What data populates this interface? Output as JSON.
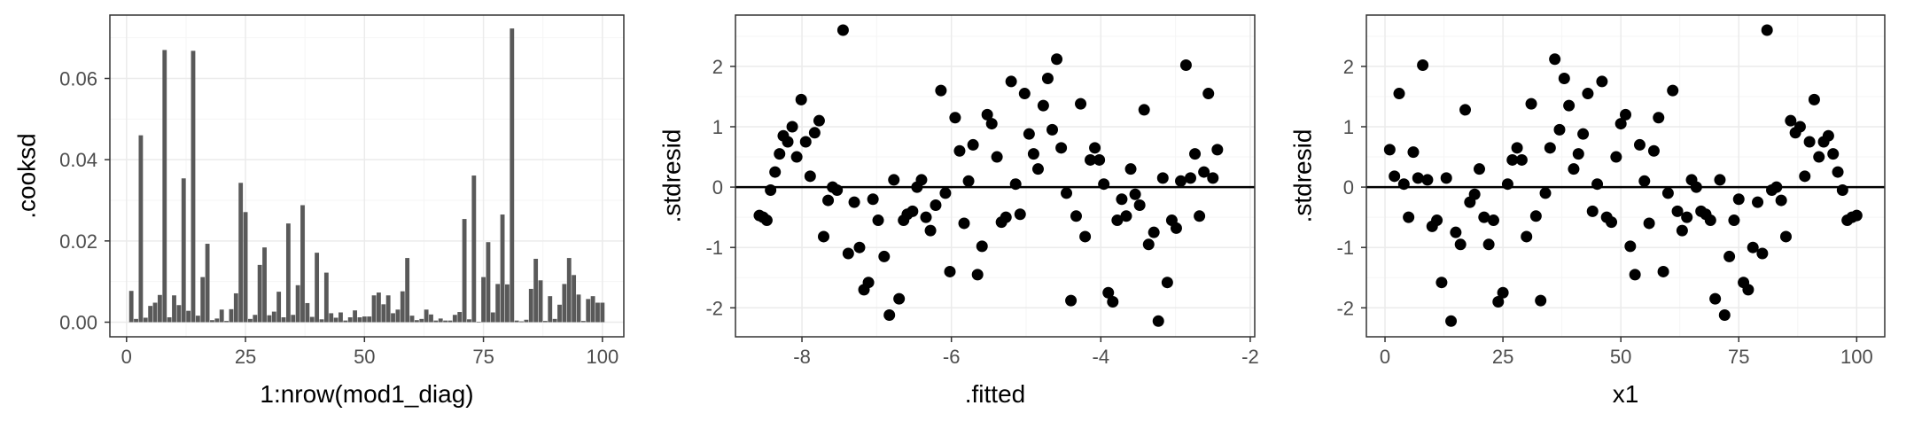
{
  "colors": {
    "panel_border": "#333333",
    "grid_major": "#ebebeb",
    "grid_minor": "#f5f5f5",
    "bar_fill": "#595959",
    "point": "#000000",
    "hline": "#000000",
    "tick_text": "#4d4d4d"
  },
  "chart_data": [
    {
      "type": "bar",
      "title": "",
      "xlabel": "1:nrow(mod1_diag)",
      "ylabel": ".cooksd",
      "xlim": [
        -3.5,
        104.5
      ],
      "ylim": [
        -0.0036,
        0.0756
      ],
      "xticks": [
        0,
        25,
        50,
        75,
        100
      ],
      "xtick_labels": [
        "0",
        "25",
        "50",
        "75",
        "100"
      ],
      "yticks": [
        0.0,
        0.02,
        0.04,
        0.06
      ],
      "ytick_labels": [
        "0.00",
        "0.02",
        "0.04",
        "0.06"
      ],
      "grid": true,
      "x": [
        1,
        2,
        3,
        4,
        5,
        6,
        7,
        8,
        9,
        10,
        11,
        12,
        13,
        14,
        15,
        16,
        17,
        18,
        19,
        20,
        21,
        22,
        23,
        24,
        25,
        26,
        27,
        28,
        29,
        30,
        31,
        32,
        33,
        34,
        35,
        36,
        37,
        38,
        39,
        40,
        41,
        42,
        43,
        44,
        45,
        46,
        47,
        48,
        49,
        50,
        51,
        52,
        53,
        54,
        55,
        56,
        57,
        58,
        59,
        60,
        61,
        62,
        63,
        64,
        65,
        66,
        67,
        68,
        69,
        70,
        71,
        72,
        73,
        74,
        75,
        76,
        77,
        78,
        79,
        80,
        81,
        82,
        83,
        84,
        85,
        86,
        87,
        88,
        89,
        90,
        91,
        92,
        93,
        94,
        95,
        96,
        97,
        98,
        99,
        100
      ],
      "values": [
        0.0077,
        0.0008,
        0.046,
        0.0011,
        0.004,
        0.0048,
        0.0067,
        0.067,
        0.0012,
        0.0066,
        0.0042,
        0.0354,
        0.0028,
        0.0668,
        0.0016,
        0.0111,
        0.0193,
        0.0005,
        0.0009,
        0.0031,
        0.0003,
        0.0032,
        0.0071,
        0.0343,
        0.0271,
        0.0008,
        0.0018,
        0.0141,
        0.0184,
        0.0017,
        0.0026,
        0.0075,
        0.0012,
        0.0243,
        0.0018,
        0.0091,
        0.0288,
        0.0047,
        0.0013,
        0.0171,
        0.0007,
        0.0122,
        0.0022,
        0.0011,
        0.0024,
        0.0004,
        0.0012,
        0.0029,
        0.0012,
        0.0014,
        0.0014,
        0.0066,
        0.0073,
        0.0044,
        0.0066,
        0.0022,
        0.0031,
        0.0076,
        0.0158,
        0.0016,
        0.0005,
        0.0008,
        0.0031,
        0.0019,
        0.0004,
        0.0009,
        0.0004,
        0.0004,
        0.0018,
        0.0025,
        0.0254,
        0.0007,
        0.0361,
        0.0001,
        0.0111,
        0.0197,
        0.0024,
        0.0094,
        0.0265,
        0.0093,
        0.0723,
        0.0004,
        0.0002,
        0.0006,
        0.0082,
        0.0156,
        0.0103,
        0.0003,
        0.0064,
        0.0008,
        0.0043,
        0.0094,
        0.0158,
        0.0116,
        0.0068,
        0.0003,
        0.0057,
        0.0064,
        0.0048,
        0.0048
      ]
    },
    {
      "type": "scatter",
      "title": "",
      "xlabel": ".fitted",
      "ylabel": ".stdresid",
      "xlim": [
        -8.89,
        -1.94
      ],
      "ylim": [
        -2.48,
        2.85
      ],
      "xticks": [
        -8,
        -6,
        -4,
        -2
      ],
      "xtick_labels": [
        "-8",
        "-6",
        "-4",
        "-2"
      ],
      "yticks": [
        -2,
        -1,
        0,
        1,
        2
      ],
      "ytick_labels": [
        "-2",
        "-1",
        "0",
        "1",
        "2"
      ],
      "hline": 0,
      "grid": true,
      "points": [
        [
          -8.57,
          -0.47
        ],
        [
          -8.52,
          -0.5
        ],
        [
          -8.47,
          -0.55
        ],
        [
          -8.42,
          -0.05
        ],
        [
          -8.36,
          0.25
        ],
        [
          -8.3,
          0.55
        ],
        [
          -8.25,
          0.85
        ],
        [
          -8.19,
          0.75
        ],
        [
          -8.13,
          1.0
        ],
        [
          -8.07,
          0.5
        ],
        [
          -8.01,
          1.45
        ],
        [
          -7.95,
          0.75
        ],
        [
          -7.89,
          0.18
        ],
        [
          -7.83,
          0.9
        ],
        [
          -7.77,
          1.1
        ],
        [
          -7.71,
          -0.82
        ],
        [
          -7.65,
          -0.22
        ],
        [
          -7.59,
          -0.0
        ],
        [
          -7.53,
          -0.05
        ],
        [
          -7.45,
          2.6
        ],
        [
          -7.38,
          -1.1
        ],
        [
          -7.3,
          -0.25
        ],
        [
          -7.23,
          -1.0
        ],
        [
          -7.17,
          -1.7
        ],
        [
          -7.11,
          -1.58
        ],
        [
          -7.05,
          -0.2
        ],
        [
          -6.98,
          -0.55
        ],
        [
          -6.9,
          -1.15
        ],
        [
          -6.83,
          -2.12
        ],
        [
          -6.77,
          0.12
        ],
        [
          -6.7,
          -1.85
        ],
        [
          -6.64,
          -0.55
        ],
        [
          -6.59,
          -0.45
        ],
        [
          -6.52,
          -0.4
        ],
        [
          -6.46,
          0.0
        ],
        [
          -6.4,
          0.12
        ],
        [
          -6.34,
          -0.5
        ],
        [
          -6.28,
          -0.72
        ],
        [
          -6.21,
          -0.3
        ],
        [
          -6.14,
          1.6
        ],
        [
          -6.08,
          -0.1
        ],
        [
          -6.02,
          -1.4
        ],
        [
          -5.95,
          1.15
        ],
        [
          -5.89,
          0.6
        ],
        [
          -5.83,
          -0.6
        ],
        [
          -5.77,
          0.1
        ],
        [
          -5.71,
          0.7
        ],
        [
          -5.65,
          -1.45
        ],
        [
          -5.59,
          -0.98
        ],
        [
          -5.52,
          1.2
        ],
        [
          -5.46,
          1.05
        ],
        [
          -5.39,
          0.5
        ],
        [
          -5.33,
          -0.58
        ],
        [
          -5.27,
          -0.5
        ],
        [
          -5.2,
          1.75
        ],
        [
          -5.14,
          0.05
        ],
        [
          -5.08,
          -0.45
        ],
        [
          -5.02,
          1.55
        ],
        [
          -4.96,
          0.88
        ],
        [
          -4.9,
          0.55
        ],
        [
          -4.84,
          0.3
        ],
        [
          -4.77,
          1.35
        ],
        [
          -4.71,
          1.8
        ],
        [
          -4.65,
          0.95
        ],
        [
          -4.59,
          2.12
        ],
        [
          -4.53,
          0.65
        ],
        [
          -4.46,
          -0.1
        ],
        [
          -4.4,
          -1.88
        ],
        [
          -4.33,
          -0.48
        ],
        [
          -4.27,
          1.38
        ],
        [
          -4.21,
          -0.82
        ],
        [
          -4.14,
          0.45
        ],
        [
          -4.08,
          0.65
        ],
        [
          -4.02,
          0.45
        ],
        [
          -3.96,
          0.05
        ],
        [
          -3.9,
          -1.75
        ],
        [
          -3.84,
          -1.9
        ],
        [
          -3.78,
          -0.55
        ],
        [
          -3.72,
          -0.2
        ],
        [
          -3.66,
          -0.48
        ],
        [
          -3.6,
          0.3
        ],
        [
          -3.54,
          -0.12
        ],
        [
          -3.48,
          -0.3
        ],
        [
          -3.42,
          1.28
        ],
        [
          -3.36,
          -0.95
        ],
        [
          -3.29,
          -0.75
        ],
        [
          -3.23,
          -2.22
        ],
        [
          -3.17,
          0.15
        ],
        [
          -3.11,
          -1.58
        ],
        [
          -3.05,
          -0.55
        ],
        [
          -2.99,
          -0.68
        ],
        [
          -2.93,
          0.1
        ],
        [
          -2.86,
          2.02
        ],
        [
          -2.8,
          0.15
        ],
        [
          -2.74,
          0.55
        ],
        [
          -2.68,
          -0.48
        ],
        [
          -2.62,
          0.25
        ],
        [
          -2.56,
          1.55
        ],
        [
          -2.5,
          0.15
        ],
        [
          -2.44,
          0.62
        ]
      ]
    },
    {
      "type": "scatter",
      "title": "",
      "xlabel": "x1",
      "ylabel": ".stdresid",
      "xlim": [
        -3.95,
        105.95
      ],
      "ylim": [
        -2.48,
        2.85
      ],
      "xticks": [
        0,
        25,
        50,
        75,
        100
      ],
      "xtick_labels": [
        "0",
        "25",
        "50",
        "75",
        "100"
      ],
      "yticks": [
        -2,
        -1,
        0,
        1,
        2
      ],
      "ytick_labels": [
        "-2",
        "-1",
        "0",
        "1",
        "2"
      ],
      "hline": 0,
      "grid": true,
      "points": [
        [
          1,
          0.62
        ],
        [
          2,
          0.18
        ],
        [
          3,
          1.55
        ],
        [
          4,
          0.05
        ],
        [
          5,
          -0.5
        ],
        [
          6,
          0.58
        ],
        [
          7,
          0.15
        ],
        [
          8,
          2.02
        ],
        [
          9,
          0.12
        ],
        [
          10,
          -0.65
        ],
        [
          11,
          -0.55
        ],
        [
          12,
          -1.58
        ],
        [
          13,
          0.15
        ],
        [
          14,
          -2.22
        ],
        [
          15,
          -0.75
        ],
        [
          16,
          -0.95
        ],
        [
          17,
          1.28
        ],
        [
          18,
          -0.25
        ],
        [
          19,
          -0.12
        ],
        [
          20,
          0.3
        ],
        [
          21,
          -0.5
        ],
        [
          22,
          -0.95
        ],
        [
          23,
          -0.55
        ],
        [
          24,
          -1.9
        ],
        [
          25,
          -1.75
        ],
        [
          26,
          0.05
        ],
        [
          27,
          0.45
        ],
        [
          28,
          0.65
        ],
        [
          29,
          0.45
        ],
        [
          30,
          -0.82
        ],
        [
          31,
          1.38
        ],
        [
          32,
          -0.48
        ],
        [
          33,
          -1.88
        ],
        [
          34,
          -0.1
        ],
        [
          35,
          0.65
        ],
        [
          36,
          2.12
        ],
        [
          37,
          0.95
        ],
        [
          38,
          1.8
        ],
        [
          39,
          1.35
        ],
        [
          40,
          0.3
        ],
        [
          41,
          0.55
        ],
        [
          42,
          0.88
        ],
        [
          43,
          1.55
        ],
        [
          44,
          -0.4
        ],
        [
          45,
          0.05
        ],
        [
          46,
          1.75
        ],
        [
          47,
          -0.5
        ],
        [
          48,
          -0.58
        ],
        [
          49,
          0.5
        ],
        [
          50,
          1.05
        ],
        [
          51,
          1.2
        ],
        [
          52,
          -0.98
        ],
        [
          53,
          -1.45
        ],
        [
          54,
          0.7
        ],
        [
          55,
          0.1
        ],
        [
          56,
          -0.6
        ],
        [
          57,
          0.6
        ],
        [
          58,
          1.15
        ],
        [
          59,
          -1.4
        ],
        [
          60,
          -0.1
        ],
        [
          61,
          1.6
        ],
        [
          62,
          -0.4
        ],
        [
          63,
          -0.72
        ],
        [
          64,
          -0.5
        ],
        [
          65,
          0.12
        ],
        [
          66,
          0.0
        ],
        [
          67,
          -0.4
        ],
        [
          68,
          -0.45
        ],
        [
          69,
          -0.55
        ],
        [
          70,
          -1.85
        ],
        [
          71,
          0.12
        ],
        [
          72,
          -2.12
        ],
        [
          73,
          -1.15
        ],
        [
          74,
          -0.55
        ],
        [
          75,
          -0.2
        ],
        [
          76,
          -1.58
        ],
        [
          77,
          -1.7
        ],
        [
          78,
          -1.0
        ],
        [
          79,
          -0.25
        ],
        [
          80,
          -1.1
        ],
        [
          81,
          2.6
        ],
        [
          82,
          -0.05
        ],
        [
          83,
          0.0
        ],
        [
          84,
          -0.22
        ],
        [
          85,
          -0.82
        ],
        [
          86,
          1.1
        ],
        [
          87,
          0.9
        ],
        [
          88,
          1.0
        ],
        [
          89,
          0.18
        ],
        [
          90,
          0.75
        ],
        [
          91,
          1.45
        ],
        [
          92,
          0.5
        ],
        [
          93,
          0.75
        ],
        [
          94,
          0.85
        ],
        [
          95,
          0.55
        ],
        [
          96,
          0.25
        ],
        [
          97,
          -0.05
        ],
        [
          98,
          -0.55
        ],
        [
          99,
          -0.5
        ],
        [
          100,
          -0.47
        ]
      ]
    }
  ]
}
